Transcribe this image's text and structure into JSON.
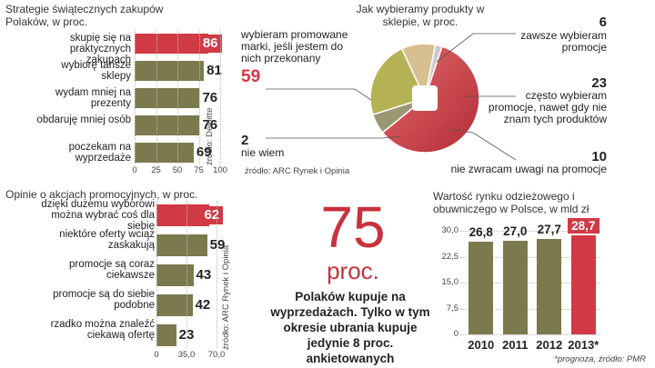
{
  "chart_data": [
    {
      "type": "bar",
      "title": "Strategie świątecznych zakupów Polaków, w proc.",
      "categories": [
        "skupię się na praktycznych zakupach",
        "wybiorę tańsze sklepy",
        "wydam mniej na prezenty",
        "obdaruję mniej osób",
        "poczekam na wyprzedaże"
      ],
      "values": [
        86,
        81,
        76,
        76,
        69
      ],
      "xlim": [
        0,
        100
      ],
      "xticks": [
        "0",
        "25",
        "50",
        "75",
        "100"
      ],
      "highlight": 0,
      "source": "źródło: Deloitte"
    },
    {
      "type": "bar",
      "title": "Opinie o akcjach promocyjnych, w proc.",
      "categories": [
        "dzięki dużemu wyborowi można wybrać coś dla siebie",
        "niektóre oferty wciąż zaskakują",
        "promocje są coraz ciekawsze",
        "promocje są do siebie podobne",
        "rzadko można znaleźć ciekawą ofertę"
      ],
      "values": [
        62,
        59,
        43,
        42,
        23
      ],
      "xlim": [
        0,
        70
      ],
      "xticks": [
        "0",
        "35,0",
        "70,0"
      ],
      "highlight": 0,
      "source": "źródło: ARC Rynek i Opinia"
    },
    {
      "type": "pie",
      "title": "Jak wybieramy produkty w sklepie, w proc.",
      "slices": [
        {
          "label": "wybieram promowane marki, jeśli jestem do nich przekonany",
          "value": 59
        },
        {
          "label": "zawsze wybieram promocje",
          "value": 6
        },
        {
          "label": "często wybieram promocje, nawet gdy nie znam tych produktów",
          "value": 23
        },
        {
          "label": "nie zwracam uwagi na promocje",
          "value": 10
        },
        {
          "label": "nie wiem",
          "value": 2
        }
      ],
      "source": "źródło: ARC Rynek i Opinia"
    },
    {
      "type": "bar",
      "title": "Wartość rynku odzieżowego i obuwniczego w Polsce, w mld zł",
      "categories": [
        "2010",
        "2011",
        "2012",
        "2013*"
      ],
      "values": [
        26.8,
        27.0,
        27.7,
        28.7
      ],
      "value_labels": [
        "26,8",
        "27,0",
        "27,7",
        "28,7"
      ],
      "ylim": [
        0,
        30
      ],
      "yticks": [
        "30,0",
        "22,5",
        "15,0",
        "7,5",
        "0"
      ],
      "highlight": 3,
      "source": "*prognoza, źródło: PMR"
    }
  ],
  "highlight": {
    "number": "75",
    "unit": "proc.",
    "text": "Polaków kupuje na wyprzedażach. Tylko w tym okresie ubrania kupuje jedynie 8 proc. ankietowanych"
  },
  "colors": {
    "accent": "#d03a44",
    "olive": "#7b7a4e",
    "green": "#b5b255",
    "tan": "#d7bf8f",
    "red_dark": "#b73641"
  }
}
